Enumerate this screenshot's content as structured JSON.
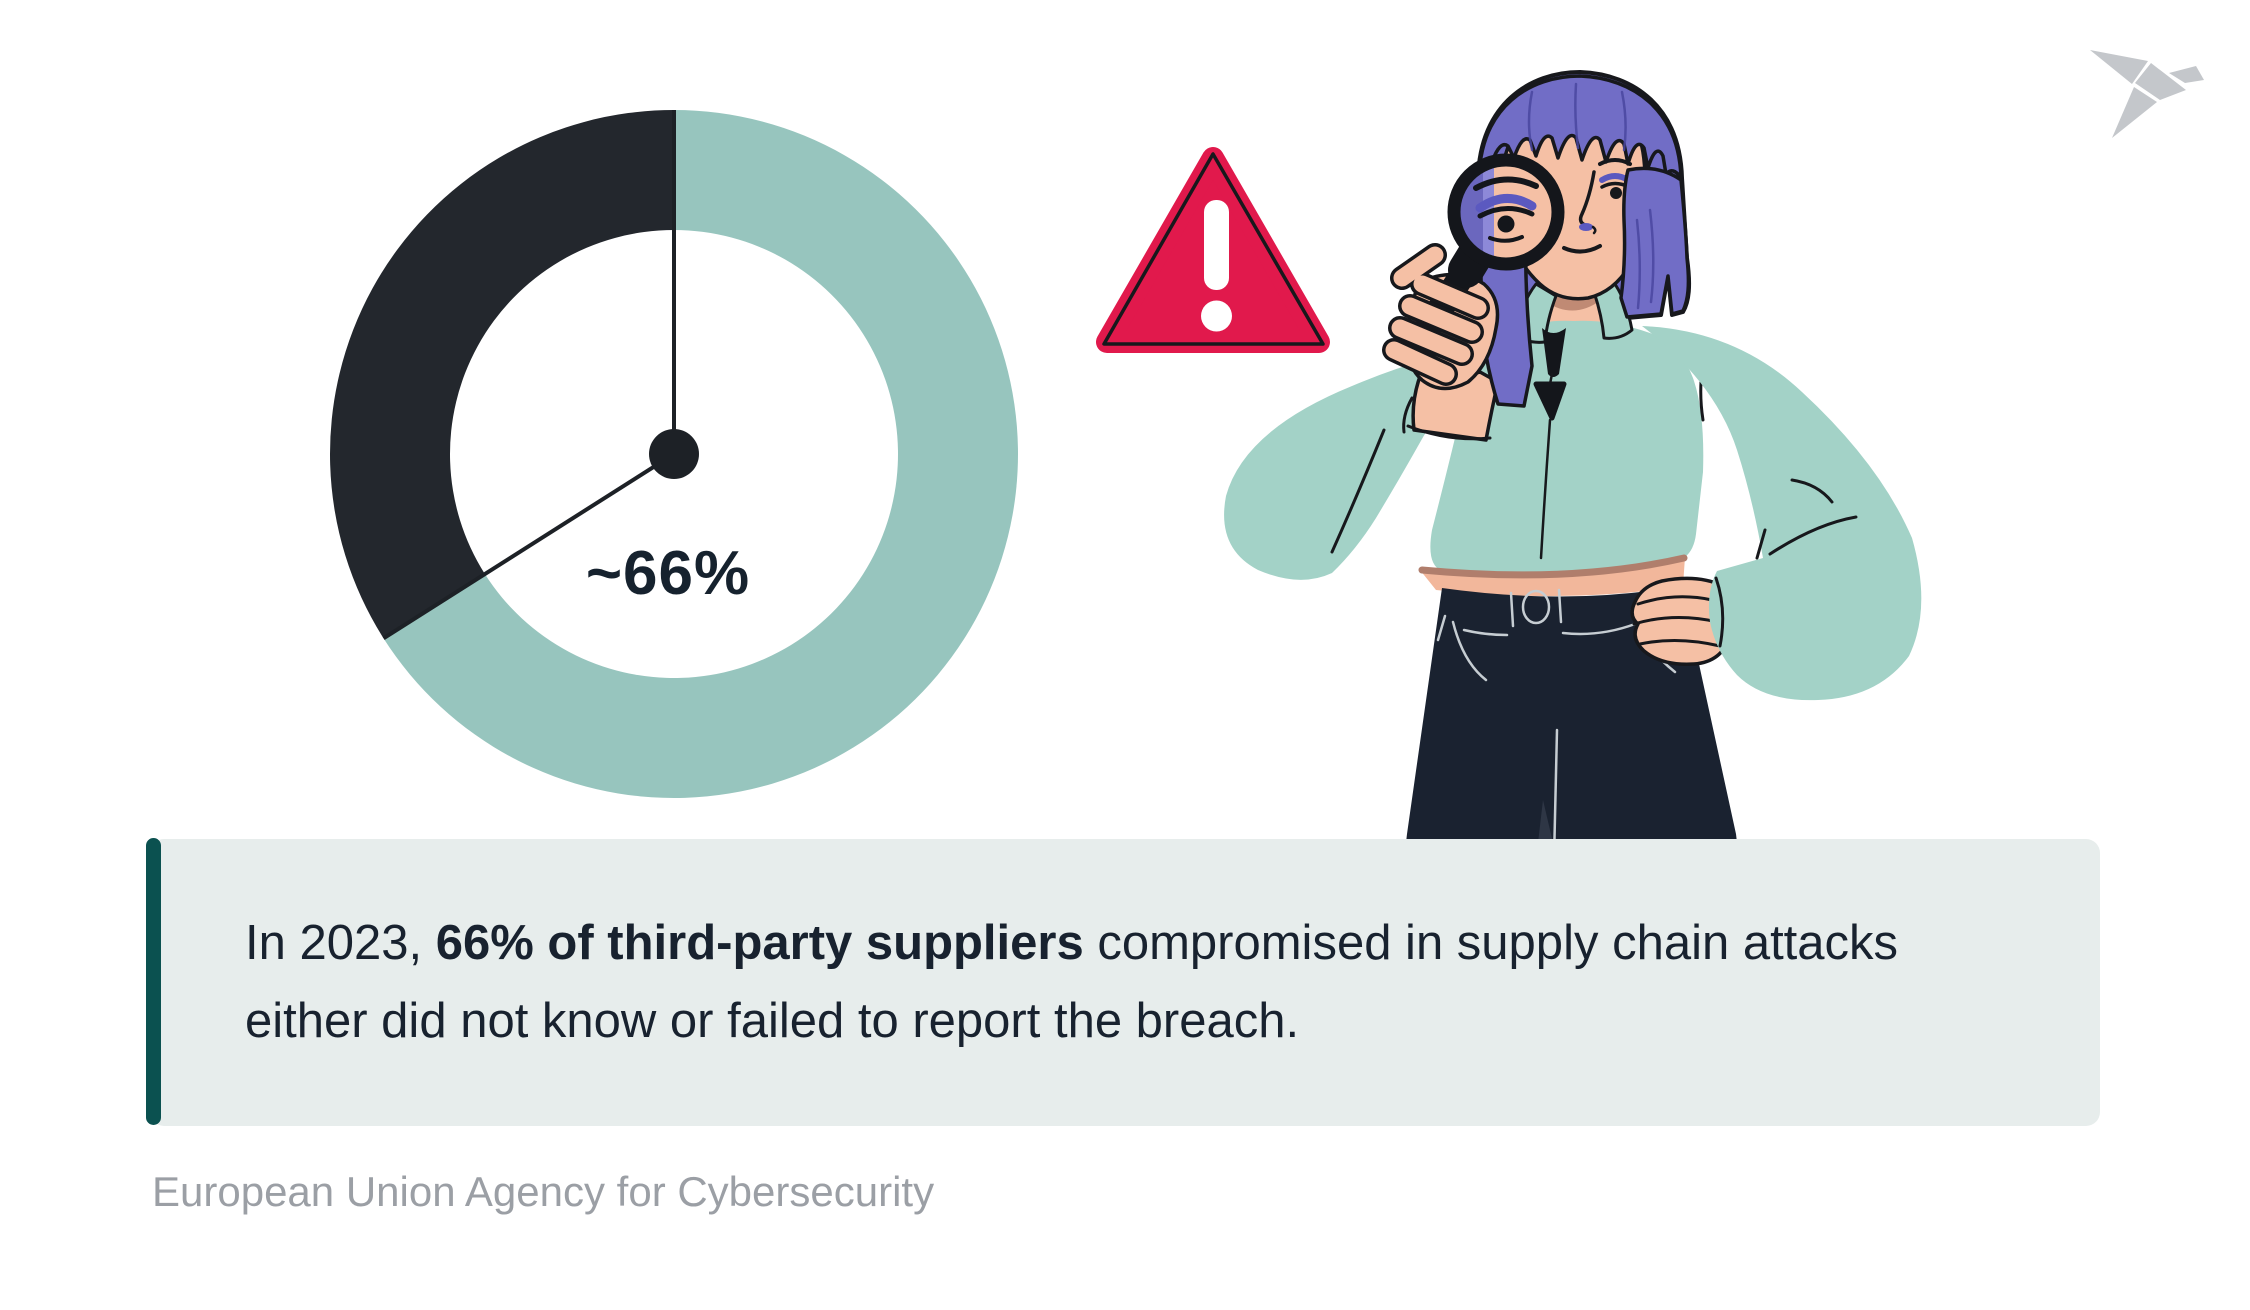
{
  "colors": {
    "background": "#FFFFFF",
    "accent_bar": "#0B5150",
    "callout_bg": "#E7EDEC",
    "callout_text": "#18222F",
    "source_text": "#9B9FA5",
    "warning_red": "#E1194C",
    "logo_gray": "#C4C7CB",
    "ink_outline": "#17181C"
  },
  "chart_data": {
    "type": "pie",
    "subtype": "donut",
    "title": "",
    "center_label": "~66%",
    "label_color": "#16222E",
    "start_angle_deg": 0,
    "direction": "clockwise",
    "outer_radius": 344,
    "inner_radius": 224,
    "divider_color": "#1D2126",
    "legend": "off",
    "slices": [
      {
        "name": "third-party suppliers that did not know or failed to report the breach",
        "value": 66,
        "color": "#97C5BE"
      },
      {
        "name": "remainder",
        "value": 34,
        "color": "#23272D"
      }
    ]
  },
  "callout": {
    "prefix": "In 2023, ",
    "highlight": "66% of third-party suppliers",
    "suffix": " compromised in supply chain attacks either did not know or failed to report the breach."
  },
  "source": {
    "text": "European Union Agency for Cybersecurity"
  },
  "illustration": {
    "description": "woman with purple bob haircut examining through a magnifying glass, hand on hip, beside a warning triangle",
    "icons": [
      "warning-triangle-icon",
      "exclamation-icon",
      "magnifying-glass-icon",
      "origami-bird-logo"
    ],
    "palette": {
      "hair": "#716DC6",
      "hair_shadow": "#4A47A0",
      "hair_light": "#8D89D8",
      "hair_lens": "#6B67BE",
      "skin": "#F5C0A5",
      "skin_shadow": "#C08A74",
      "waist_shadow": "#B07E6C",
      "jacket": "#A3D2C7",
      "pants": "#1A2230",
      "pants_crease": "#2E3645",
      "stitch": "#C6CDD2",
      "eyeshadow": "#5B59C0"
    }
  }
}
